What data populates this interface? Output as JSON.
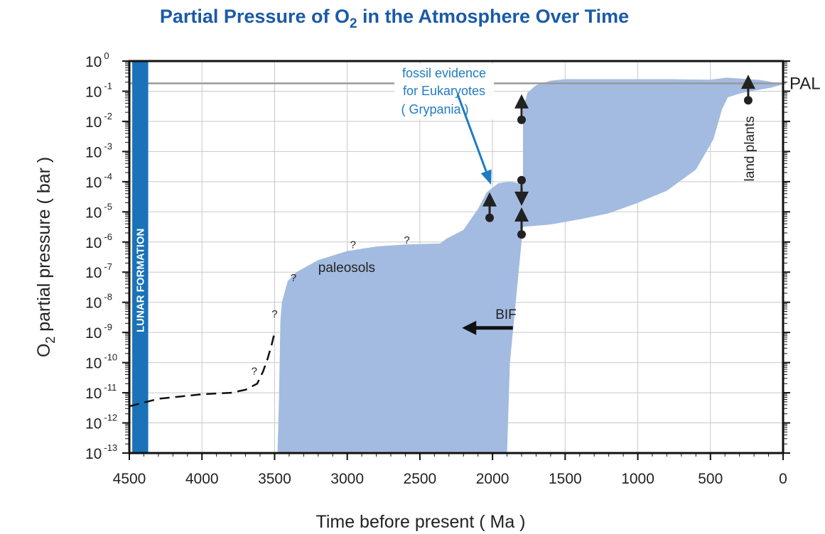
{
  "chart_data": {
    "type": "area",
    "title_main": "Partial Pressure of O",
    "title_sub": "2",
    "title_rest": " in the Atmosphere Over Time",
    "xlabel": "Time before present ( Ma )",
    "ylabel_main": "O",
    "ylabel_sub": "2",
    "ylabel_rest": " partial pressure ( bar )",
    "x_range": [
      4500,
      0
    ],
    "y_range_log10": [
      -13,
      0
    ],
    "x_ticks": [
      "4500",
      "4000",
      "3500",
      "3000",
      "2500",
      "2000",
      "1500",
      "1000",
      "500",
      "0"
    ],
    "x_tick_values": [
      4500,
      4000,
      3500,
      3000,
      2500,
      2000,
      1500,
      1000,
      500,
      0
    ],
    "y_ticks": [
      {
        "base": "10",
        "exp": "0"
      },
      {
        "base": "10",
        "exp": "-1"
      },
      {
        "base": "10",
        "exp": "-2"
      },
      {
        "base": "10",
        "exp": "-3"
      },
      {
        "base": "10",
        "exp": "-4"
      },
      {
        "base": "10",
        "exp": "-5"
      },
      {
        "base": "10",
        "exp": "-6"
      },
      {
        "base": "10",
        "exp": "-7"
      },
      {
        "base": "10",
        "exp": "-8"
      },
      {
        "base": "10",
        "exp": "-9"
      },
      {
        "base": "10",
        "exp": "-10"
      },
      {
        "base": "10",
        "exp": "-11"
      },
      {
        "base": "10",
        "exp": "-12"
      },
      {
        "base": "10",
        "exp": "-13"
      }
    ],
    "grid": true,
    "band": {
      "color": "#a3bbe0",
      "upper": [
        [
          3480,
          -13
        ],
        [
          3470,
          -11.2
        ],
        [
          3460,
          -8.6
        ],
        [
          3450,
          -8
        ],
        [
          3410,
          -7.3
        ],
        [
          3350,
          -7
        ],
        [
          3200,
          -6.6
        ],
        [
          3000,
          -6.3
        ],
        [
          2800,
          -6.15
        ],
        [
          2600,
          -6.08
        ],
        [
          2360,
          -6.05
        ],
        [
          2320,
          -5.9
        ],
        [
          2200,
          -5.6
        ],
        [
          2100,
          -4.9
        ],
        [
          2040,
          -4.35
        ],
        [
          1960,
          -4.05
        ],
        [
          1880,
          -4
        ],
        [
          1820,
          -4.05
        ],
        [
          1790,
          -4.2
        ],
        [
          1790,
          -1.6
        ],
        [
          1760,
          -1.05
        ],
        [
          1700,
          -0.8
        ],
        [
          1600,
          -0.65
        ],
        [
          1500,
          -0.6
        ],
        [
          1200,
          -0.6
        ],
        [
          800,
          -0.6
        ],
        [
          500,
          -0.62
        ],
        [
          390,
          -0.55
        ],
        [
          300,
          -0.58
        ],
        [
          150,
          -0.63
        ],
        [
          0,
          -0.77
        ]
      ],
      "lower": [
        [
          0,
          -0.77
        ],
        [
          80,
          -0.88
        ],
        [
          280,
          -1.05
        ],
        [
          380,
          -1.2
        ],
        [
          420,
          -1.6
        ],
        [
          480,
          -2.6
        ],
        [
          600,
          -3.6
        ],
        [
          800,
          -4.3
        ],
        [
          1000,
          -4.7
        ],
        [
          1200,
          -5.05
        ],
        [
          1400,
          -5.25
        ],
        [
          1600,
          -5.42
        ],
        [
          1790,
          -5.5
        ],
        [
          1880,
          -10
        ],
        [
          1900,
          -13
        ],
        [
          3400,
          -13
        ]
      ]
    },
    "dashed_path": [
      [
        4500,
        -11.45
      ],
      [
        4300,
        -11.2
      ],
      [
        4000,
        -11.05
      ],
      [
        3800,
        -11
      ],
      [
        3700,
        -10.9
      ],
      [
        3620,
        -10.7
      ],
      [
        3580,
        -10.3
      ],
      [
        3550,
        -9.9
      ],
      [
        3520,
        -9.4
      ],
      [
        3500,
        -9
      ]
    ],
    "question_marks": [
      [
        3500,
        -8.5
      ],
      [
        3640,
        -10.4
      ],
      [
        3370,
        -7.3
      ],
      [
        2960,
        -6.2
      ],
      [
        2590,
        -6.05
      ]
    ],
    "reference_line": {
      "y_log10": -0.74,
      "label": "PAL",
      "color": "#9a9a9a"
    },
    "lunar_formation": {
      "x_start": 4480,
      "x_end": 4370,
      "label": "LUNAR FORMATION",
      "color": "#1a72b8"
    },
    "annotations": {
      "paleosols": {
        "text": "paleosols",
        "x": 3200,
        "y_log10": -7
      },
      "bif": {
        "text": "BIF",
        "x": 1980,
        "y_log10": -8.55
      },
      "land_plants": {
        "text": "land plants",
        "x": 230,
        "y_log10": -1.4
      },
      "fossil_lines": [
        "fossil evidence",
        "for Eukaryotes",
        "( Grypania )"
      ]
    },
    "bif_arrow": {
      "x_from": 1860,
      "x_to": 2210,
      "y_log10": -8.85
    },
    "arrows": [
      {
        "x": 2020,
        "y_from": -5.2,
        "y_to": -4.35,
        "dir": "up"
      },
      {
        "x": 1800,
        "y_from": -1.95,
        "y_to": -1.1,
        "dir": "up"
      },
      {
        "x": 1800,
        "y_from": -3.95,
        "y_to": -4.8,
        "dir": "down"
      },
      {
        "x": 1800,
        "y_from": -5.75,
        "y_to": -4.85,
        "dir": "up"
      },
      {
        "x": 240,
        "y_from": -1.3,
        "y_to": -0.45,
        "dir": "up"
      }
    ],
    "callout_arrow": {
      "from": [
        2240,
        -1.1
      ],
      "to": [
        2010,
        -4.1
      ]
    }
  }
}
